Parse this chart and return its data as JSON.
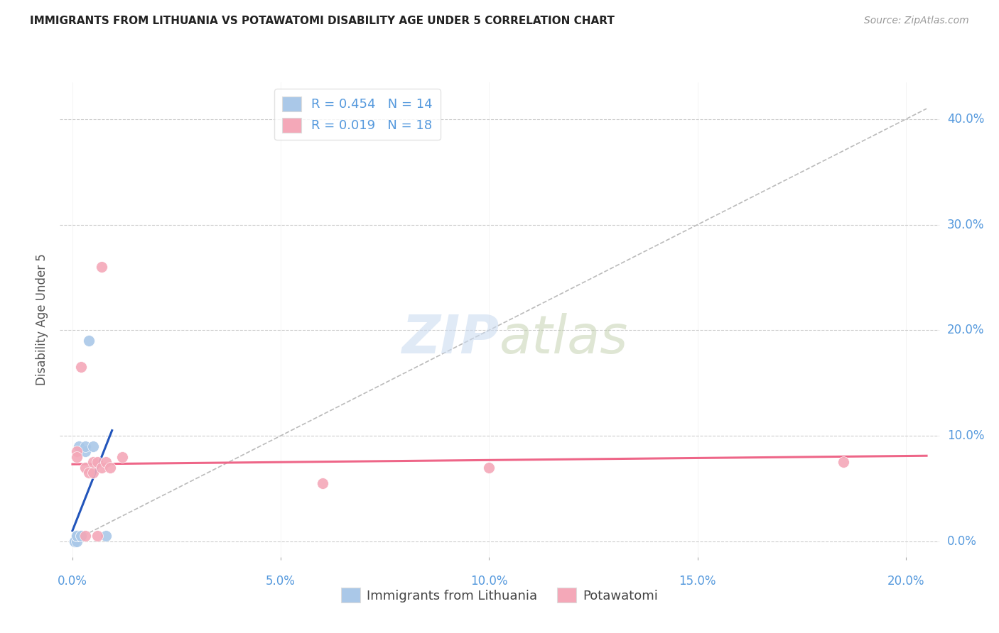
{
  "title": "IMMIGRANTS FROM LITHUANIA VS POTAWATOMI DISABILITY AGE UNDER 5 CORRELATION CHART",
  "source": "Source: ZipAtlas.com",
  "xlabel_ticks": [
    0.0,
    0.05,
    0.1,
    0.15,
    0.2
  ],
  "ylabel_ticks": [
    0.0,
    0.1,
    0.2,
    0.3,
    0.4
  ],
  "xlim": [
    -0.003,
    0.208
  ],
  "ylim": [
    -0.015,
    0.435
  ],
  "blue_scatter_x": [
    0.0005,
    0.0005,
    0.001,
    0.001,
    0.001,
    0.001,
    0.0015,
    0.002,
    0.002,
    0.003,
    0.003,
    0.004,
    0.005,
    0.008
  ],
  "blue_scatter_y": [
    0.0,
    0.0,
    0.0,
    0.005,
    0.005,
    0.005,
    0.09,
    0.005,
    0.005,
    0.085,
    0.09,
    0.19,
    0.09,
    0.005
  ],
  "pink_scatter_x": [
    0.001,
    0.001,
    0.002,
    0.003,
    0.003,
    0.004,
    0.005,
    0.005,
    0.006,
    0.006,
    0.007,
    0.007,
    0.008,
    0.009,
    0.012,
    0.06,
    0.1,
    0.185
  ],
  "pink_scatter_y": [
    0.085,
    0.08,
    0.165,
    0.005,
    0.07,
    0.065,
    0.065,
    0.075,
    0.005,
    0.075,
    0.26,
    0.07,
    0.075,
    0.07,
    0.08,
    0.055,
    0.07,
    0.075
  ],
  "blue_color": "#aac8e8",
  "pink_color": "#f4a8b8",
  "blue_line_color": "#2255bb",
  "pink_line_color": "#ee6688",
  "blue_trendline_x": [
    0.0,
    0.0095
  ],
  "blue_trendline_y": [
    0.01,
    0.105
  ],
  "pink_trendline_x": [
    0.0,
    0.205
  ],
  "pink_trendline_y": [
    0.073,
    0.081
  ],
  "diag_line_x": [
    0.0,
    0.205
  ],
  "diag_line_y": [
    0.0,
    0.41
  ],
  "legend_blue_R": "R = 0.454",
  "legend_blue_N": "N = 14",
  "legend_pink_R": "R = 0.019",
  "legend_pink_N": "N = 18",
  "ylabel": "Disability Age Under 5",
  "watermark_zip": "ZIP",
  "watermark_atlas": "atlas",
  "title_color": "#222222",
  "axis_color": "#5599dd",
  "grid_color": "#cccccc",
  "scatter_size": 130
}
